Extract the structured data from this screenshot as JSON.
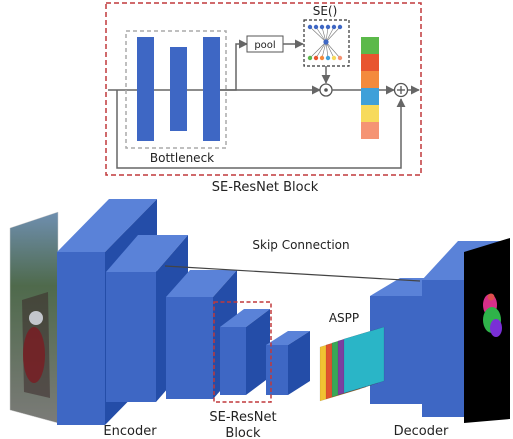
{
  "se_block": {
    "title": "SE-ResNet Block",
    "bottleneck_label": "Bottleneck",
    "pool_label": "pool",
    "se_label": "SE()",
    "mult_symbol": "⊙",
    "add_symbol": "⊕",
    "channel_colors": [
      "#5bb94a",
      "#e8542f",
      "#f48a3c",
      "#3fa0d9",
      "#f7da5b",
      "#f59474"
    ]
  },
  "network": {
    "skip_label": "Skip Connection",
    "aspp_label": "ASPP",
    "encoder_label": "Encoder",
    "se_resnet_label_line1": "SE-ResNet",
    "se_resnet_label_line2": "Block",
    "decoder_label": "Decoder",
    "aspp_colors": [
      "#f1c232",
      "#e0522f",
      "#3aa757",
      "#7b3fa0",
      "#2ab5c7"
    ]
  },
  "colors": {
    "block_front": "#3e67c4",
    "block_side": "#244da8",
    "block_top": "#5a82d8",
    "dashed_red": "#c0393b",
    "dashed_gray": "#aaaaaa",
    "arrow": "#666666"
  }
}
